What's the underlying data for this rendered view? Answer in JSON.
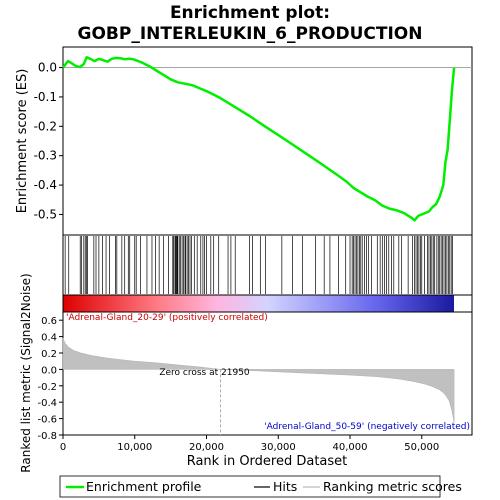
{
  "chart_data": [
    {
      "type": "line",
      "title_line1": "Enrichment plot:",
      "title_line2": "GOBP_INTERLEUKIN_6_PRODUCTION",
      "ylabel": "Enrichment score (ES)",
      "xlim": [
        0,
        57000
      ],
      "ylim": [
        -0.57,
        0.07
      ],
      "yticks": [
        0.0,
        -0.1,
        -0.2,
        -0.3,
        -0.4,
        -0.5
      ],
      "ytick_labels": [
        "0.0",
        "-0.1",
        "-0.2",
        "-0.3",
        "-0.4",
        "-0.5"
      ],
      "series_color": "#00ee00",
      "x": [
        0,
        300,
        700,
        1200,
        1800,
        2400,
        2900,
        3300,
        3800,
        4400,
        5000,
        5600,
        6200,
        6800,
        7400,
        8000,
        8600,
        9200,
        9800,
        10500,
        11200,
        12000,
        13000,
        14000,
        15000,
        16000,
        17000,
        18000,
        19000,
        20000,
        21000,
        22000,
        24000,
        26000,
        28000,
        30000,
        32000,
        34000,
        36000,
        38000,
        39500,
        40500,
        41500,
        42500,
        43500,
        44500,
        45500,
        46500,
        47500,
        48500,
        49000,
        49500,
        50000,
        50500,
        51000,
        51500,
        52000,
        52500,
        53000,
        53300,
        53600,
        53900,
        54200,
        54500
      ],
      "y": [
        0.0,
        0.01,
        0.022,
        0.015,
        0.005,
        0.002,
        0.012,
        0.035,
        0.03,
        0.022,
        0.03,
        0.025,
        0.02,
        0.03,
        0.033,
        0.032,
        0.028,
        0.03,
        0.028,
        0.022,
        0.015,
        0.005,
        -0.01,
        -0.025,
        -0.04,
        -0.05,
        -0.055,
        -0.06,
        -0.07,
        -0.08,
        -0.092,
        -0.105,
        -0.135,
        -0.165,
        -0.198,
        -0.23,
        -0.262,
        -0.295,
        -0.328,
        -0.362,
        -0.388,
        -0.41,
        -0.425,
        -0.44,
        -0.452,
        -0.47,
        -0.48,
        -0.486,
        -0.495,
        -0.51,
        -0.52,
        -0.505,
        -0.5,
        -0.495,
        -0.49,
        -0.475,
        -0.465,
        -0.44,
        -0.4,
        -0.32,
        -0.28,
        -0.18,
        -0.08,
        0.0
      ]
    },
    {
      "type": "heatmap",
      "hits": [
        300,
        800,
        2400,
        2600,
        2900,
        3100,
        3300,
        3400,
        4300,
        4600,
        5000,
        5500,
        6000,
        6500,
        7300,
        7500,
        8200,
        8600,
        9100,
        9300,
        10000,
        10200,
        10800,
        11700,
        12400,
        12900,
        13400,
        14000,
        14700,
        15300,
        15400,
        15600,
        15700,
        15800,
        15900,
        16000,
        16200,
        16400,
        16600,
        16800,
        17000,
        17100,
        17300,
        17500,
        17700,
        17900,
        18300,
        18700,
        19200,
        19500,
        19700,
        20000,
        20600,
        21000,
        21700,
        23000,
        23400,
        24000,
        26000,
        26400,
        27500,
        28200,
        30500,
        32000,
        33400,
        35200,
        36400,
        37200,
        38400,
        39400,
        40000,
        40300,
        40500,
        40700,
        40900,
        41100,
        41300,
        41500,
        41700,
        42000,
        42300,
        42600,
        43000,
        43800,
        44200,
        44500,
        44800,
        45100,
        45400,
        45800,
        46100,
        46800,
        47200,
        48100,
        48700,
        49000,
        49200,
        49400,
        49600,
        49800,
        50000,
        50400,
        50800,
        51000,
        51200,
        51400,
        51600,
        51800,
        52100,
        52300,
        52500,
        52700,
        52900,
        53100,
        53300,
        53500,
        53700,
        53900,
        54100,
        54300
      ],
      "colorbar_stops": [
        "#dd0000",
        "#ff7b85",
        "#ffb6e0",
        "#d3d3ff",
        "#6666ee",
        "#1a1aa0"
      ],
      "pos_label": "'Adrenal-Gland_20-29' (positively correlated)",
      "neg_label": "'Adrenal-Gland_50-59' (negatively correlated)"
    },
    {
      "type": "area",
      "ylabel": "Ranked list metric (Signal2Noise)",
      "xlabel": "Rank in Ordered Dataset",
      "xlim": [
        0,
        57000
      ],
      "ylim": [
        -0.8,
        0.7
      ],
      "yticks": [
        0.6,
        0.4,
        0.2,
        0.0,
        -0.2,
        -0.4,
        -0.6,
        -0.8
      ],
      "ytick_labels": [
        "0.6",
        "0.4",
        "0.2",
        "0.0",
        "-0.2",
        "-0.4",
        "-0.6",
        "-0.8"
      ],
      "xticks": [
        0,
        10000,
        20000,
        30000,
        40000,
        50000
      ],
      "xtick_labels": [
        "0",
        "10,000",
        "20,000",
        "30,000",
        "40,000",
        "50,000"
      ],
      "zero_cross": 21950,
      "zero_cross_label": "Zero cross at 21950",
      "x": [
        0,
        300,
        800,
        1500,
        2500,
        4000,
        6000,
        8000,
        10000,
        13000,
        16000,
        19000,
        21950,
        25000,
        30000,
        35000,
        40000,
        44000,
        47000,
        49000,
        50500,
        51500,
        52500,
        53200,
        53800,
        54200,
        54500
      ],
      "values": [
        0.38,
        0.32,
        0.27,
        0.23,
        0.2,
        0.17,
        0.14,
        0.12,
        0.1,
        0.08,
        0.055,
        0.03,
        0.0,
        -0.01,
        -0.03,
        -0.05,
        -0.07,
        -0.09,
        -0.12,
        -0.15,
        -0.18,
        -0.21,
        -0.25,
        -0.3,
        -0.38,
        -0.5,
        -0.65
      ]
    }
  ],
  "legend": {
    "items": [
      {
        "label": "Enrichment profile",
        "color": "#00ee00"
      },
      {
        "label": "Hits",
        "color": "#000000"
      },
      {
        "label": "Ranking metric scores",
        "color": "#bbbbbb"
      }
    ]
  }
}
